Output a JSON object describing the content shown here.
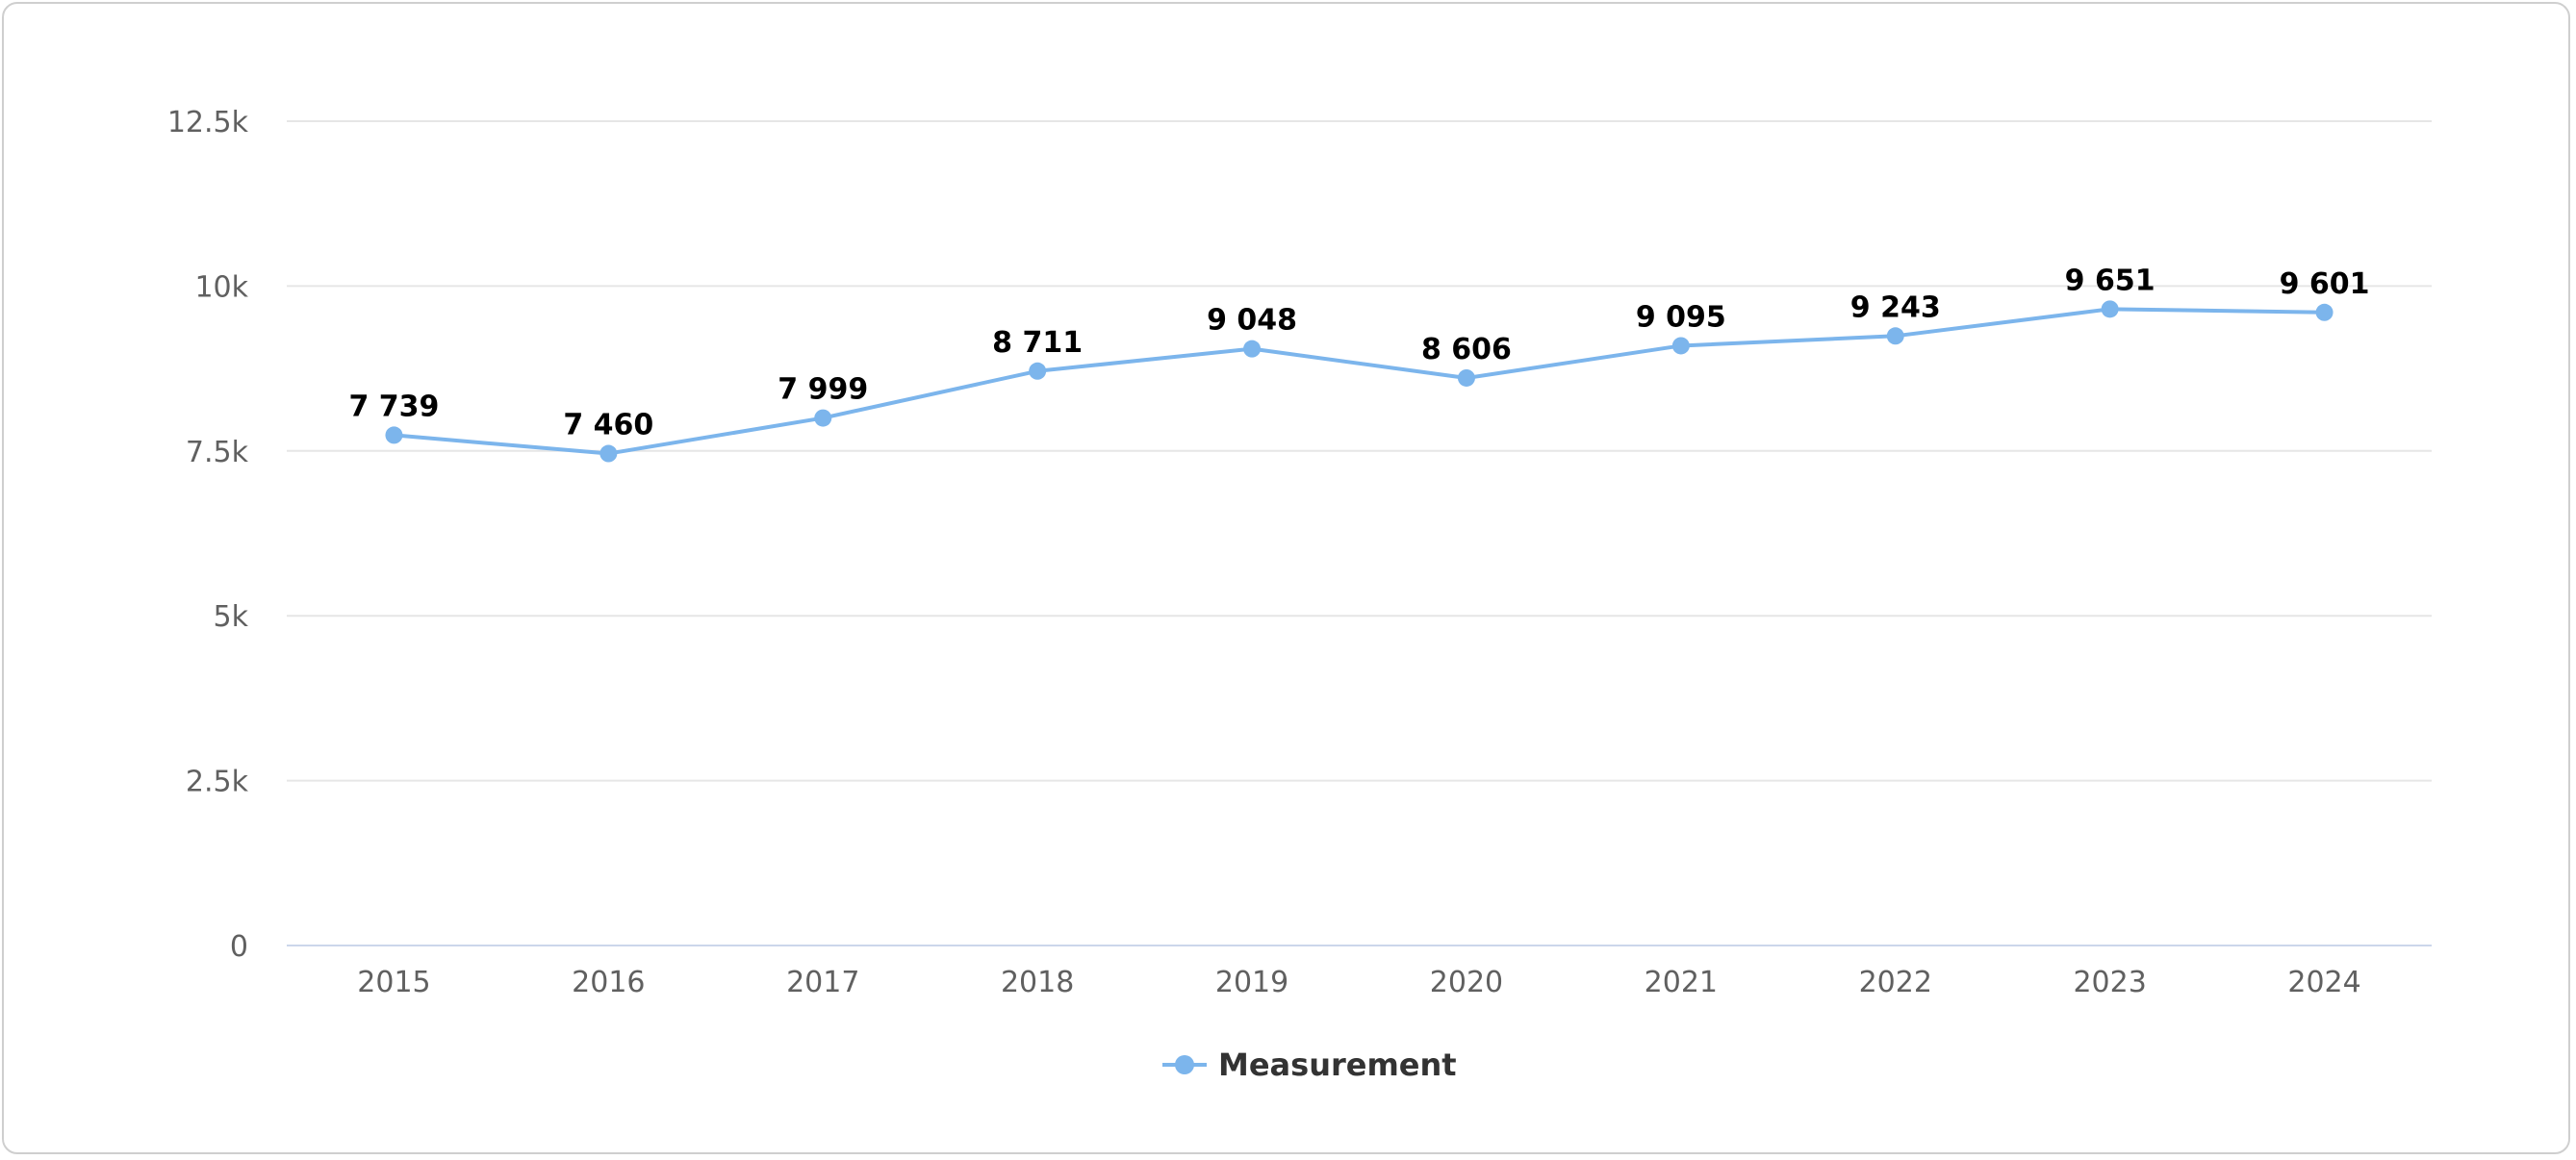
{
  "chart_data": {
    "type": "line",
    "title": "",
    "xlabel": "",
    "ylabel": "",
    "categories": [
      "2015",
      "2016",
      "2017",
      "2018",
      "2019",
      "2020",
      "2021",
      "2022",
      "2023",
      "2024"
    ],
    "series": [
      {
        "name": "Measurement",
        "color": "#7cb5ec",
        "values": [
          7739,
          7460,
          7999,
          8711,
          9048,
          8606,
          9095,
          9243,
          9651,
          9601
        ],
        "data_labels": [
          "7 739",
          "7 460",
          "7 999",
          "8 711",
          "9 048",
          "8 606",
          "9 095",
          "9 243",
          "9 651",
          "9 601"
        ]
      }
    ],
    "ylim": [
      0,
      12500
    ],
    "y_ticks": [
      0,
      2500,
      5000,
      7500,
      10000,
      12500
    ],
    "y_tick_labels": [
      "0",
      "2.5k",
      "5k",
      "7.5k",
      "10k",
      "12.5k"
    ],
    "grid": true,
    "legend": "bottom-center",
    "colors": {
      "grid": "#e6e6e6",
      "axis": "#ccd6eb",
      "tick_text": "#606060"
    }
  }
}
